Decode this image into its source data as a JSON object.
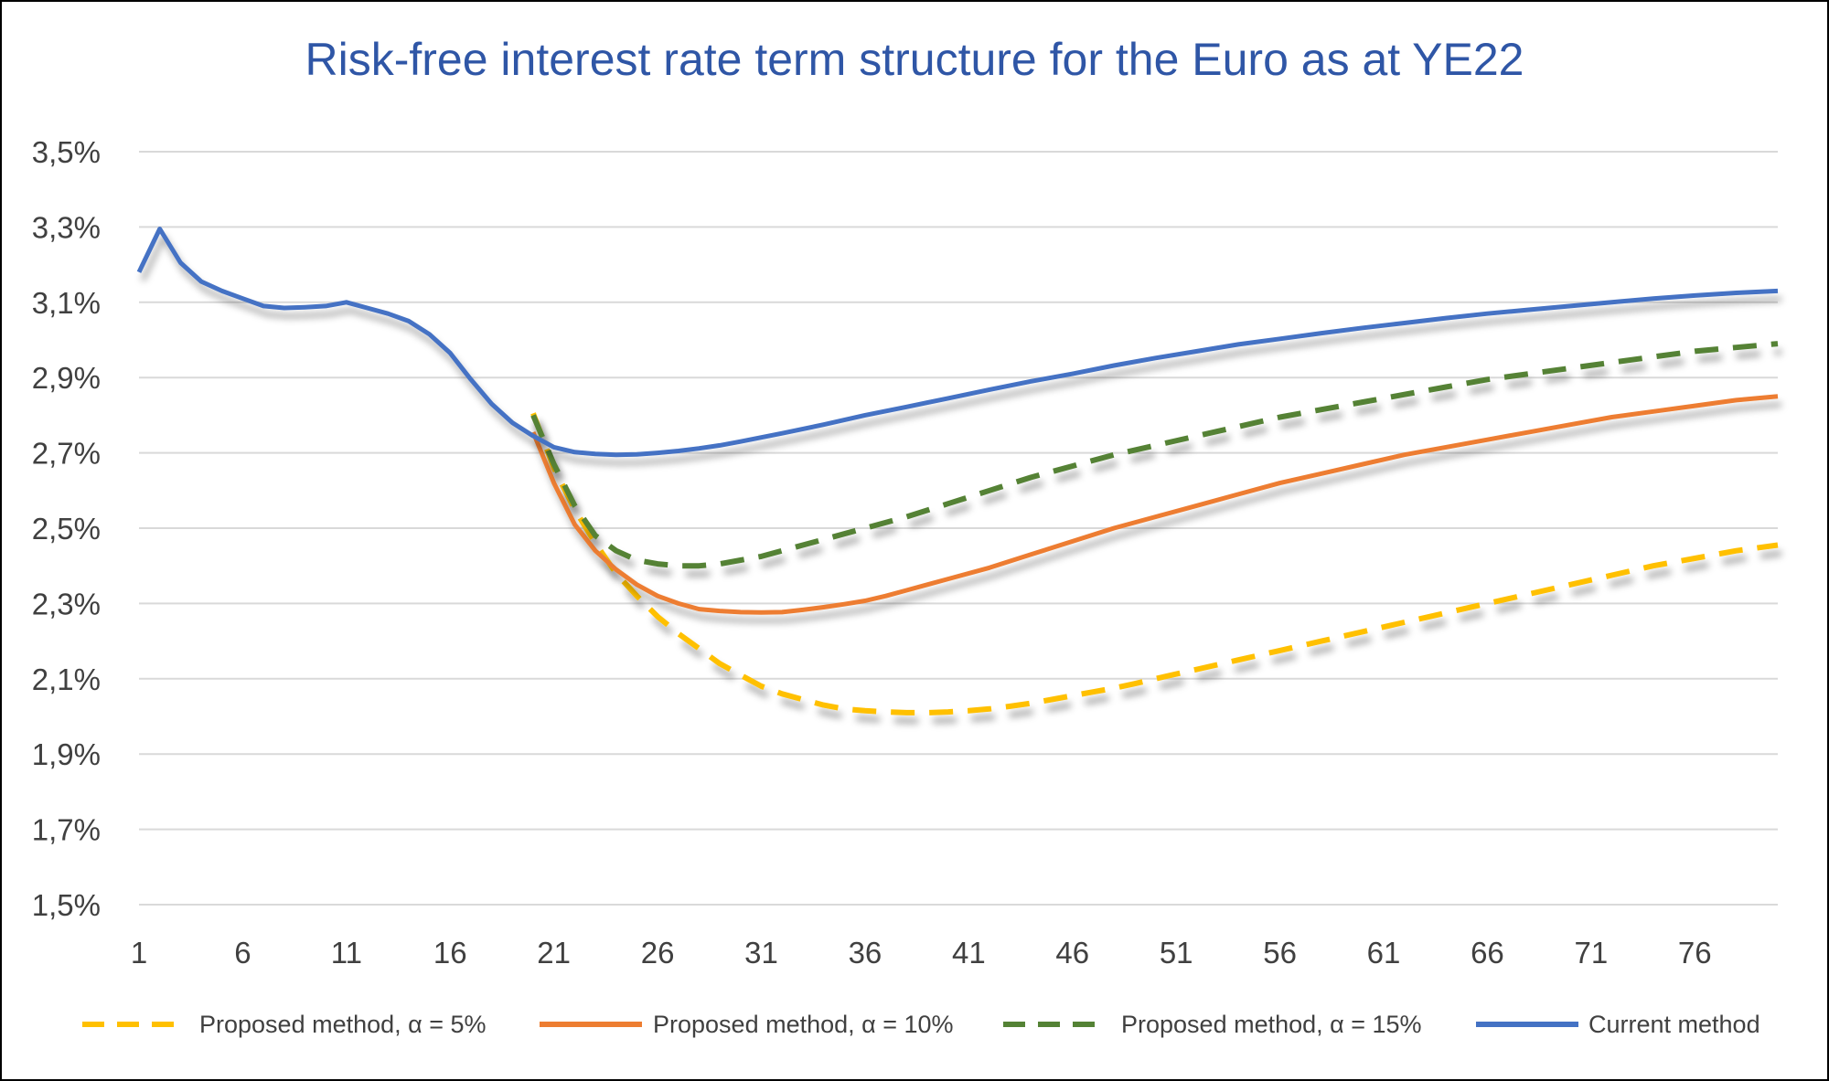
{
  "chart_data": {
    "type": "line",
    "title": "Risk-free interest rate term structure for the Euro as at YE22",
    "xlabel": "",
    "ylabel": "",
    "ylim": [
      1.5,
      3.5
    ],
    "y_ticks": [
      "1,5%",
      "1,7%",
      "1,9%",
      "2,1%",
      "2,3%",
      "2,5%",
      "2,7%",
      "2,9%",
      "3,1%",
      "3,3%",
      "3,5%"
    ],
    "y_tick_values": [
      1.5,
      1.7,
      1.9,
      2.1,
      2.3,
      2.5,
      2.7,
      2.9,
      3.1,
      3.3,
      3.5
    ],
    "xlim": [
      1,
      80
    ],
    "x_ticks": [
      "1",
      "6",
      "11",
      "16",
      "21",
      "26",
      "31",
      "36",
      "41",
      "46",
      "51",
      "56",
      "61",
      "66",
      "71",
      "76"
    ],
    "x_tick_values": [
      1,
      6,
      11,
      16,
      21,
      26,
      31,
      36,
      41,
      46,
      51,
      56,
      61,
      66,
      71,
      76
    ],
    "grid": "horizontal",
    "legend_position": "bottom",
    "series": [
      {
        "name": "Proposed method, α = 5%",
        "color": "#FFC000",
        "dash": "dash",
        "x": [
          20,
          21,
          22,
          23,
          24,
          25,
          26,
          27,
          28,
          29,
          30,
          31,
          32,
          33,
          34,
          35,
          36,
          37,
          38,
          39,
          40,
          41,
          42,
          43,
          44,
          45,
          46,
          47,
          48,
          49,
          50,
          52,
          54,
          56,
          58,
          60,
          62,
          64,
          66,
          68,
          70,
          72,
          74,
          76,
          78,
          80
        ],
        "y": [
          2.805,
          2.66,
          2.55,
          2.46,
          2.38,
          2.32,
          2.265,
          2.22,
          2.18,
          2.14,
          2.11,
          2.08,
          2.06,
          2.045,
          2.03,
          2.02,
          2.015,
          2.012,
          2.01,
          2.01,
          2.012,
          2.015,
          2.02,
          2.027,
          2.035,
          2.045,
          2.055,
          2.065,
          2.075,
          2.087,
          2.1,
          2.125,
          2.15,
          2.175,
          2.2,
          2.225,
          2.25,
          2.275,
          2.3,
          2.325,
          2.35,
          2.375,
          2.4,
          2.42,
          2.44,
          2.455
        ]
      },
      {
        "name": "Proposed method, α = 10%",
        "color": "#ED7D31",
        "dash": "solid",
        "x": [
          20,
          21,
          22,
          23,
          24,
          25,
          26,
          27,
          28,
          29,
          30,
          31,
          32,
          33,
          34,
          35,
          36,
          37,
          38,
          39,
          40,
          42,
          44,
          46,
          48,
          50,
          52,
          54,
          56,
          58,
          60,
          62,
          64,
          66,
          68,
          70,
          72,
          74,
          76,
          78,
          80
        ],
        "y": [
          2.755,
          2.62,
          2.51,
          2.44,
          2.39,
          2.35,
          2.32,
          2.3,
          2.285,
          2.28,
          2.277,
          2.276,
          2.277,
          2.283,
          2.29,
          2.298,
          2.307,
          2.32,
          2.335,
          2.35,
          2.365,
          2.395,
          2.43,
          2.465,
          2.5,
          2.53,
          2.56,
          2.59,
          2.62,
          2.645,
          2.67,
          2.695,
          2.715,
          2.735,
          2.755,
          2.775,
          2.795,
          2.81,
          2.825,
          2.84,
          2.85
        ]
      },
      {
        "name": "Proposed method, α = 15%",
        "color": "#548235",
        "dash": "dash",
        "x": [
          20,
          21,
          22,
          23,
          24,
          25,
          26,
          27,
          28,
          29,
          30,
          31,
          32,
          33,
          34,
          35,
          36,
          38,
          40,
          42,
          44,
          46,
          48,
          50,
          52,
          54,
          56,
          58,
          60,
          62,
          64,
          66,
          68,
          70,
          72,
          74,
          76,
          78,
          80
        ],
        "y": [
          2.8,
          2.67,
          2.56,
          2.48,
          2.44,
          2.415,
          2.405,
          2.4,
          2.4,
          2.405,
          2.415,
          2.425,
          2.44,
          2.455,
          2.47,
          2.485,
          2.5,
          2.53,
          2.565,
          2.6,
          2.635,
          2.665,
          2.695,
          2.72,
          2.745,
          2.77,
          2.795,
          2.815,
          2.835,
          2.855,
          2.875,
          2.895,
          2.91,
          2.925,
          2.94,
          2.955,
          2.97,
          2.98,
          2.99
        ]
      },
      {
        "name": "Current method",
        "color": "#4472C4",
        "dash": "solid",
        "x": [
          1,
          2,
          3,
          4,
          5,
          6,
          7,
          8,
          9,
          10,
          11,
          12,
          13,
          14,
          15,
          16,
          17,
          18,
          19,
          20,
          21,
          22,
          23,
          24,
          25,
          26,
          27,
          28,
          29,
          30,
          32,
          34,
          36,
          38,
          40,
          42,
          44,
          46,
          48,
          50,
          52,
          54,
          56,
          58,
          60,
          62,
          64,
          66,
          68,
          70,
          72,
          74,
          76,
          78,
          80
        ],
        "y": [
          3.18,
          3.295,
          3.205,
          3.155,
          3.13,
          3.11,
          3.09,
          3.085,
          3.087,
          3.09,
          3.1,
          3.085,
          3.07,
          3.05,
          3.015,
          2.965,
          2.895,
          2.83,
          2.78,
          2.745,
          2.715,
          2.702,
          2.697,
          2.695,
          2.696,
          2.7,
          2.705,
          2.712,
          2.72,
          2.73,
          2.752,
          2.775,
          2.8,
          2.822,
          2.845,
          2.868,
          2.89,
          2.91,
          2.932,
          2.952,
          2.97,
          2.988,
          3.003,
          3.018,
          3.032,
          3.045,
          3.058,
          3.07,
          3.08,
          3.09,
          3.1,
          3.11,
          3.118,
          3.125,
          3.13
        ]
      }
    ]
  }
}
